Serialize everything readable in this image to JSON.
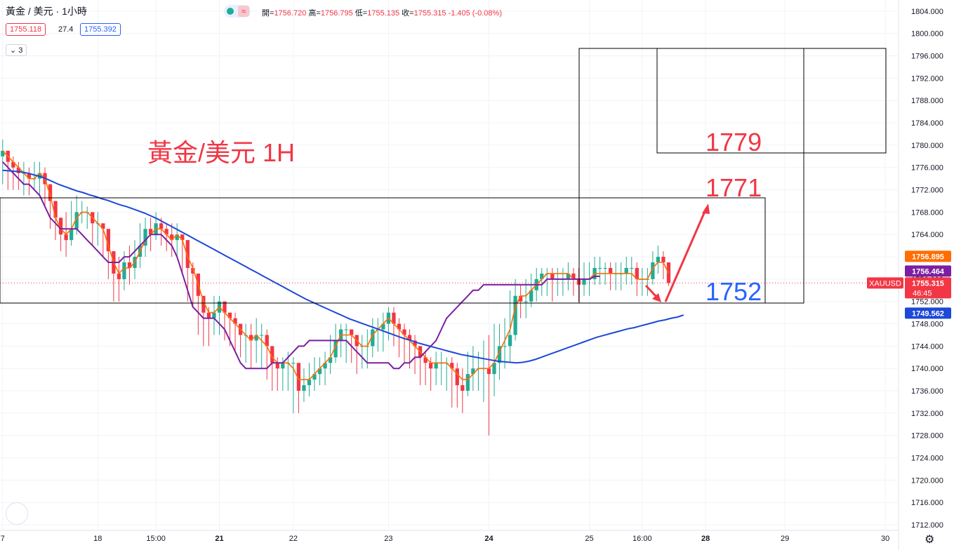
{
  "header": {
    "symbol_title": "黃金 / 美元 · 1小時",
    "pill_icon": "≈",
    "ohlc": [
      {
        "label": "開=",
        "value": "1756.720"
      },
      {
        "label": "高=",
        "value": "1756.795"
      },
      {
        "label": "低=",
        "value": "1755.135"
      },
      {
        "label": "收=",
        "value": "1755.315"
      },
      {
        "label": "",
        "value": "-1.405 (-0.08%)"
      }
    ],
    "bid": "1755.118",
    "spread": "27.4",
    "ask": "1755.392",
    "indicator_count": "3"
  },
  "colors": {
    "up": "#22ab94",
    "down": "#f23645",
    "ma_fast": "#ff6d00",
    "ma_mid": "#7b1fa2",
    "ma_slow": "#1e48d6",
    "annot_red": "#f23645",
    "annot_blue": "#2962ff"
  },
  "annotations": {
    "title": "黃金/美元 1H",
    "level_1779": "1779",
    "level_1771": "1771",
    "level_1752": "1752"
  },
  "price_tags": [
    {
      "text": "1756.895",
      "color": "#ff6d00",
      "value": 1756.895
    },
    {
      "text": "1756.464",
      "color": "#7b1fa2",
      "value": 1756.464
    },
    {
      "text": "1755.315",
      "color": "#f23645",
      "value": 1755.315,
      "sub": "46:45"
    },
    {
      "text": "1749.562",
      "color": "#1e48d6",
      "value": 1749.562
    }
  ],
  "symbol_tag": "XAUUSD",
  "chart_data": {
    "type": "line",
    "title": "",
    "ylim": [
      1711,
      1806
    ],
    "y_ticks": [
      "1712.000",
      "1716.000",
      "1720.000",
      "1724.000",
      "1728.000",
      "1732.000",
      "1736.000",
      "1740.000",
      "1744.000",
      "1748.000",
      "1752.000",
      "1756.000",
      "1760.000",
      "1764.000",
      "1768.000",
      "1772.000",
      "1776.000",
      "1780.000",
      "1784.000",
      "1788.000",
      "1792.000",
      "1796.000",
      "1800.000",
      "1804.000"
    ],
    "x_ticks": [
      {
        "label": "7",
        "bar": 0,
        "bold": false
      },
      {
        "label": "18",
        "bar": 18,
        "bold": false
      },
      {
        "label": "15:00",
        "bar": 29,
        "bold": false
      },
      {
        "label": "21",
        "bar": 41,
        "bold": true
      },
      {
        "label": "22",
        "bar": 55,
        "bold": false
      },
      {
        "label": "23",
        "bar": 73,
        "bold": false
      },
      {
        "label": "24",
        "bar": 92,
        "bold": true
      },
      {
        "label": "25",
        "bar": 111,
        "bold": false
      },
      {
        "label": "16:00",
        "bar": 121,
        "bold": false
      },
      {
        "label": "28",
        "bar": 133,
        "bold": true
      },
      {
        "label": "29",
        "bar": 148,
        "bold": false
      },
      {
        "label": "30",
        "bar": 167,
        "bold": false
      }
    ],
    "bar_count": 170,
    "series": [
      {
        "name": "",
        "kind": "close",
        "values": [
          1779,
          1777,
          1776,
          1775,
          1775,
          1774,
          1774,
          1775,
          1773,
          1770,
          1767,
          1764,
          1763,
          1765,
          1768,
          1768,
          1768,
          1766,
          1766,
          1765,
          1761,
          1757,
          1756,
          1759,
          1758,
          1760,
          1762,
          1765,
          1764,
          1766,
          1765,
          1764,
          1763,
          1764,
          1763,
          1758,
          1757,
          1753,
          1750,
          1749,
          1750,
          1752,
          1750,
          1749,
          1748,
          1746,
          1746,
          1745,
          1746,
          1746,
          1744,
          1741,
          1740,
          1741,
          1741,
          1741,
          1736,
          1737,
          1738,
          1739,
          1740,
          1741,
          1742,
          1745,
          1747,
          1747,
          1746,
          1744,
          1744,
          1744,
          1747,
          1747,
          1748,
          1750,
          1748,
          1747,
          1746,
          1745,
          1744,
          1742,
          1741,
          1740,
          1741,
          1741,
          1741,
          1740,
          1737,
          1736,
          1739,
          1740,
          1740,
          1740,
          1739,
          1741,
          1744,
          1744,
          1746,
          1753,
          1752,
          1752,
          1754,
          1756,
          1757,
          1757,
          1756,
          1756,
          1756,
          1757,
          1756,
          1755,
          1756,
          1756,
          1758,
          1758,
          1758,
          1757,
          1757,
          1757,
          1758,
          1758,
          1756,
          1756,
          1756,
          1759,
          1760,
          1759,
          1755.3
        ]
      },
      {
        "name": "",
        "kind": "ma_fast",
        "values": [
          1779,
          1778,
          1777,
          1776,
          1775,
          1774,
          1774,
          1775,
          1774,
          1771,
          1767,
          1765,
          1764,
          1765,
          1767,
          1768,
          1768,
          1767,
          1766,
          1765,
          1762,
          1759,
          1757,
          1758,
          1758,
          1759,
          1761,
          1763,
          1764,
          1765,
          1765,
          1764,
          1763,
          1764,
          1763,
          1760,
          1758,
          1755,
          1752,
          1750,
          1750,
          1751,
          1750,
          1749,
          1748,
          1747,
          1746,
          1745,
          1746,
          1745,
          1744,
          1742,
          1741,
          1741,
          1741,
          1740,
          1738,
          1738,
          1738,
          1739,
          1740,
          1741,
          1742,
          1744,
          1746,
          1746,
          1746,
          1745,
          1744,
          1744,
          1746,
          1747,
          1748,
          1749,
          1748,
          1747,
          1746,
          1745,
          1744,
          1743,
          1742,
          1741,
          1741,
          1741,
          1741,
          1740,
          1739,
          1738,
          1738,
          1739,
          1740,
          1740,
          1740,
          1741,
          1743,
          1745,
          1747,
          1751,
          1753,
          1753,
          1754,
          1755,
          1756,
          1757,
          1757,
          1757,
          1757,
          1757,
          1756,
          1756,
          1756,
          1756,
          1757,
          1757,
          1757,
          1757,
          1757,
          1757,
          1757,
          1757,
          1756,
          1756,
          1756,
          1758,
          1759,
          1759,
          1757
        ]
      },
      {
        "name": "",
        "kind": "ma_mid",
        "values": [
          1777,
          1776,
          1775,
          1774,
          1773,
          1773,
          1772,
          1771,
          1769,
          1767,
          1766,
          1765,
          1765,
          1765,
          1765,
          1764,
          1763,
          1762,
          1761,
          1760,
          1759,
          1759,
          1759,
          1760,
          1760,
          1761,
          1762,
          1763,
          1764,
          1764,
          1764,
          1763,
          1762,
          1760,
          1757,
          1754,
          1751,
          1750,
          1749,
          1749,
          1749,
          1748,
          1747,
          1745,
          1743,
          1741,
          1740,
          1740,
          1740,
          1740,
          1740,
          1741,
          1741,
          1741,
          1742,
          1743,
          1744,
          1744,
          1745,
          1745,
          1745,
          1745,
          1745,
          1745,
          1745,
          1745,
          1744,
          1743,
          1742,
          1741,
          1741,
          1741,
          1741,
          1741,
          1740,
          1740,
          1741,
          1741,
          1742,
          1742,
          1743,
          1744,
          1745,
          1747,
          1749,
          1750,
          1751,
          1752,
          1753,
          1754,
          1754,
          1755,
          1755,
          1755,
          1755,
          1755,
          1755,
          1755,
          1755,
          1755,
          1755,
          1755,
          1755,
          1756,
          1756,
          1756,
          1756,
          1756,
          1756,
          1756,
          1756,
          1756,
          1756.5,
          1756.5
        ]
      },
      {
        "name": "",
        "kind": "ma_slow",
        "values": [
          1775.5,
          1775.4,
          1775.3,
          1775.2,
          1775.0,
          1774.7,
          1774.4,
          1774.0,
          1773.5,
          1773.0,
          1772.6,
          1772.2,
          1771.8,
          1771.5,
          1771.1,
          1770.8,
          1770.4,
          1770.1,
          1769.7,
          1769.3,
          1769.0,
          1768.6,
          1768.2,
          1767.8,
          1767.3,
          1766.8,
          1766.2,
          1765.6,
          1765.0,
          1764.4,
          1763.8,
          1763.2,
          1762.6,
          1762.0,
          1761.4,
          1760.8,
          1760.2,
          1759.6,
          1759.0,
          1758.4,
          1757.8,
          1757.2,
          1756.6,
          1756.0,
          1755.4,
          1754.8,
          1754.2,
          1753.6,
          1753.0,
          1752.4,
          1751.9,
          1751.4,
          1750.9,
          1750.4,
          1749.9,
          1749.4,
          1748.9,
          1748.5,
          1748.1,
          1747.7,
          1747.3,
          1746.9,
          1746.5,
          1746.1,
          1745.7,
          1745.3,
          1745.0,
          1744.6,
          1744.3,
          1744.0,
          1743.7,
          1743.4,
          1743.1,
          1742.8,
          1742.5,
          1742.3,
          1742.1,
          1741.9,
          1741.7,
          1741.5,
          1741.3,
          1741.2,
          1741.1,
          1741.0,
          1741.1,
          1741.3,
          1741.6,
          1742.0,
          1742.4,
          1742.8,
          1743.2,
          1743.6,
          1744.0,
          1744.4,
          1744.8,
          1745.2,
          1745.6,
          1745.9,
          1746.2,
          1746.5,
          1746.8,
          1747.1,
          1747.3,
          1747.6,
          1747.9,
          1748.2,
          1748.5,
          1748.7,
          1749.0,
          1749.2,
          1749.562
        ]
      }
    ],
    "lows": [
      1773,
      1772,
      1772,
      1772,
      1771,
      1771,
      1772,
      1771,
      1769,
      1765,
      1763,
      1761,
      1760,
      1762,
      1764,
      1766,
      1765,
      1762,
      1762,
      1760,
      1756,
      1752,
      1752,
      1754,
      1755,
      1756,
      1758,
      1760,
      1761,
      1763,
      1762,
      1761,
      1760,
      1760,
      1757,
      1752,
      1751,
      1746,
      1744,
      1744,
      1746,
      1746,
      1745,
      1744,
      1743,
      1742,
      1741,
      1740,
      1741,
      1740,
      1738,
      1736,
      1736,
      1736,
      1736,
      1732,
      1732,
      1734,
      1735,
      1736,
      1737,
      1737,
      1739,
      1741,
      1742,
      1741,
      1741,
      1739,
      1740,
      1740,
      1742,
      1743,
      1743,
      1745,
      1744,
      1742,
      1741,
      1740,
      1739,
      1737,
      1737,
      1736,
      1737,
      1737,
      1736,
      1733,
      1733,
      1732,
      1735,
      1736,
      1736,
      1734,
      1728,
      1735,
      1738,
      1740,
      1741,
      1745,
      1749,
      1749,
      1751,
      1752,
      1753,
      1753,
      1752,
      1753,
      1753,
      1754,
      1753,
      1752,
      1753,
      1753,
      1755,
      1755,
      1755,
      1754,
      1754,
      1754,
      1755,
      1755,
      1753,
      1753,
      1753,
      1755,
      1757,
      1756,
      1754.8
    ],
    "highs": [
      1781,
      1779,
      1778,
      1777,
      1777,
      1776,
      1777,
      1777,
      1776,
      1771,
      1769,
      1767,
      1768,
      1770,
      1771,
      1770,
      1769,
      1767,
      1768,
      1766,
      1762,
      1760,
      1760,
      1761,
      1762,
      1763,
      1766,
      1767,
      1767,
      1768,
      1767,
      1766,
      1766,
      1766,
      1764,
      1760,
      1759,
      1754,
      1751,
      1751,
      1753,
      1753,
      1751,
      1750,
      1750,
      1748,
      1748,
      1748,
      1749,
      1748,
      1747,
      1743,
      1742,
      1742,
      1743,
      1742,
      1739,
      1740,
      1741,
      1742,
      1742,
      1743,
      1746,
      1748,
      1748,
      1748,
      1747,
      1746,
      1746,
      1747,
      1749,
      1749,
      1750,
      1751,
      1751,
      1749,
      1748,
      1747,
      1746,
      1744,
      1743,
      1742,
      1743,
      1743,
      1742,
      1742,
      1741,
      1740,
      1743,
      1744,
      1743,
      1745,
      1746,
      1748,
      1748,
      1749,
      1754,
      1756,
      1755,
      1756,
      1757,
      1758,
      1758,
      1758,
      1758,
      1758,
      1758,
      1759,
      1758,
      1758,
      1759,
      1759,
      1760,
      1760,
      1759,
      1759,
      1759,
      1759,
      1760,
      1760,
      1759,
      1758,
      1758,
      1761,
      1762,
      1761,
      1757
    ]
  }
}
